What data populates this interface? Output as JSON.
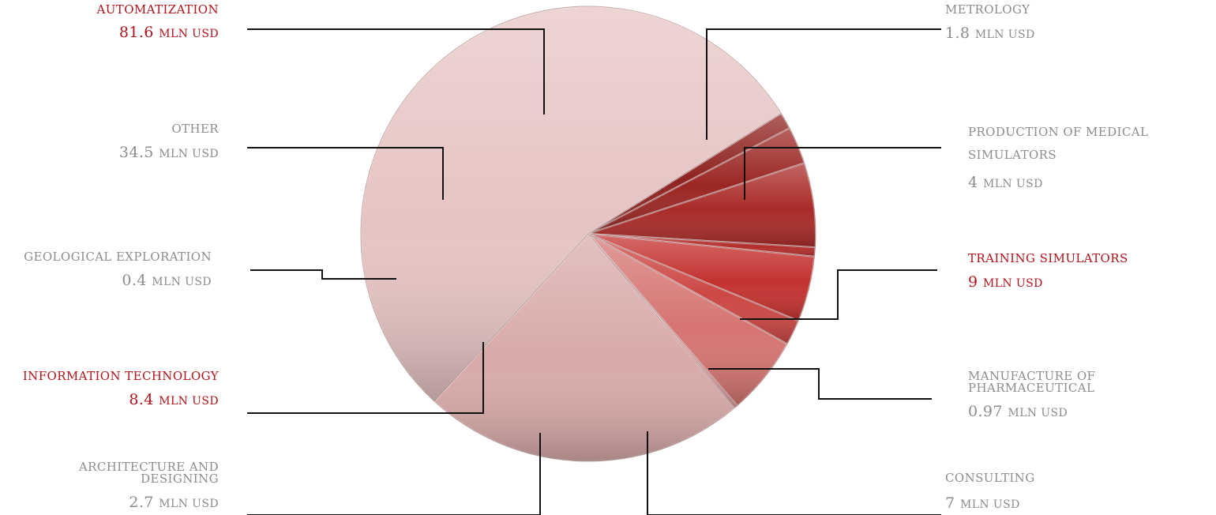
{
  "chart_data": {
    "type": "pie",
    "unit": "MLN USD",
    "colors": {
      "highlight": "#b0141a",
      "label_gray": "#8c8c8c",
      "leader": "#111111"
    },
    "slices": [
      {
        "key": "metrology",
        "name": "METROLOGY",
        "value": 1.8,
        "value_label": "1.8",
        "highlight": false,
        "color": "#8f2320"
      },
      {
        "key": "medical",
        "name": "PRODUCTION OF MEDICAL SIMULATORS",
        "name_lines": [
          "PRODUCTION OF MEDICAL",
          "SIMULATORS"
        ],
        "value": 4,
        "value_label": "4",
        "highlight": false,
        "color": "#9b2623"
      },
      {
        "key": "training",
        "name": "TRAINING SIMULATORS",
        "value": 9,
        "value_label": "9",
        "highlight": true,
        "color": "#a92b28"
      },
      {
        "key": "pharma",
        "name": "MANUFACTURE OF PHARMACEUTICAL",
        "value": 0.97,
        "value_label": "0.97",
        "highlight": false,
        "color": "#b32e2b"
      },
      {
        "key": "consulting",
        "name": "CONSULTING",
        "value": 7,
        "value_label": "7",
        "highlight": false,
        "color": "#c3322f"
      },
      {
        "key": "architecture",
        "name": "ARCHITECTURE AND DESIGNING",
        "value": 2.7,
        "value_label": "2.7",
        "highlight": false,
        "color": "#cc4744"
      },
      {
        "key": "it",
        "name": "INFORMATION TECHNOLOGY",
        "value": 8.4,
        "value_label": "8.4",
        "highlight": true,
        "color": "#d57572"
      },
      {
        "key": "geology",
        "name": "GEOLOGICAL EXPLORATION",
        "value": 0.4,
        "value_label": "0.4",
        "highlight": false,
        "color": "#dc9a97"
      },
      {
        "key": "other",
        "name": "OTHER",
        "value": 34.5,
        "value_label": "34.5",
        "highlight": false,
        "color": "#d8aaa8"
      },
      {
        "key": "automatization",
        "name": "AUTOMATIZATION",
        "value": 81.6,
        "value_label": "81.6",
        "highlight": true,
        "color": "#e6c4c3"
      }
    ]
  }
}
